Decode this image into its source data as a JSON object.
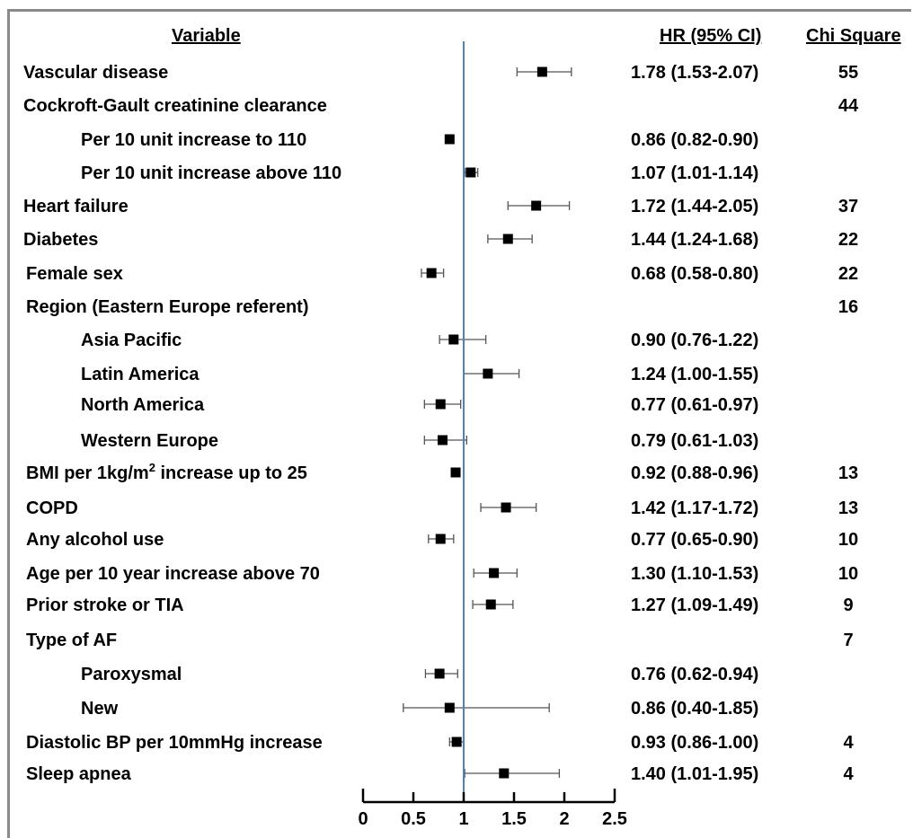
{
  "chart_data": {
    "type": "forest",
    "headers": {
      "variable": "Variable",
      "hr": "HR (95% CI)",
      "chi": "Chi Square"
    },
    "x_ticks": [
      0,
      0.5,
      1,
      1.5,
      2,
      2.5
    ],
    "xlim": [
      0,
      2.5
    ],
    "reference_line": 1,
    "reference_color": "#4f81bd",
    "rows": [
      {
        "label": "Vascular disease",
        "indent": 0,
        "hr": 1.78,
        "lo": 1.53,
        "hi": 2.07,
        "hr_text": "1.78 (1.53-2.07)",
        "chi": "55"
      },
      {
        "label": "Cockroft-Gault creatinine clearance",
        "indent": 0,
        "hr": null,
        "lo": null,
        "hi": null,
        "hr_text": "",
        "chi": "44"
      },
      {
        "label": "Per 10 unit increase to 110",
        "indent": 2,
        "hr": 0.86,
        "lo": 0.82,
        "hi": 0.9,
        "hr_text": "0.86 (0.82-0.90)",
        "chi": ""
      },
      {
        "label": "Per 10 unit increase above 110",
        "indent": 2,
        "hr": 1.07,
        "lo": 1.01,
        "hi": 1.14,
        "hr_text": "1.07 (1.01-1.14)",
        "chi": ""
      },
      {
        "label": "Heart failure",
        "indent": 0,
        "hr": 1.72,
        "lo": 1.44,
        "hi": 2.05,
        "hr_text": "1.72 (1.44-2.05)",
        "chi": "37"
      },
      {
        "label": "Diabetes",
        "indent": 0,
        "hr": 1.44,
        "lo": 1.24,
        "hi": 1.68,
        "hr_text": "1.44 (1.24-1.68)",
        "chi": "22"
      },
      {
        "label": "Female sex",
        "indent": 1,
        "hr": 0.68,
        "lo": 0.58,
        "hi": 0.8,
        "hr_text": "0.68 (0.58-0.80)",
        "chi": "22"
      },
      {
        "label": "Region (Eastern Europe referent)",
        "indent": 1,
        "hr": null,
        "lo": null,
        "hi": null,
        "hr_text": "",
        "chi": "16"
      },
      {
        "label": "Asia Pacific",
        "indent": 2,
        "hr": 0.9,
        "lo": 0.76,
        "hi": 1.22,
        "hr_text": "0.90 (0.76-1.22)",
        "chi": ""
      },
      {
        "label": "Latin America",
        "indent": 2,
        "hr": 1.24,
        "lo": 1.0,
        "hi": 1.55,
        "hr_text": "1.24 (1.00-1.55)",
        "chi": ""
      },
      {
        "label": "North America",
        "indent": 2,
        "hr": 0.77,
        "lo": 0.61,
        "hi": 0.97,
        "hr_text": "0.77 (0.61-0.97)",
        "chi": ""
      },
      {
        "label": "Western Europe",
        "indent": 2,
        "hr": 0.79,
        "lo": 0.61,
        "hi": 1.03,
        "hr_text": "0.79 (0.61-1.03)",
        "chi": ""
      },
      {
        "label": "BMI per 1kg/m",
        "label_sup": "2",
        "label_tail": " increase up to 25",
        "indent": 1,
        "hr": 0.92,
        "lo": 0.88,
        "hi": 0.96,
        "hr_text": "0.92 (0.88-0.96)",
        "chi": "13"
      },
      {
        "label": "COPD",
        "indent": 1,
        "hr": 1.42,
        "lo": 1.17,
        "hi": 1.72,
        "hr_text": "1.42 (1.17-1.72)",
        "chi": "13"
      },
      {
        "label": "Any alcohol use",
        "indent": 1,
        "hr": 0.77,
        "lo": 0.65,
        "hi": 0.9,
        "hr_text": "0.77 (0.65-0.90)",
        "chi": "10"
      },
      {
        "label": "Age per 10 year increase above 70",
        "indent": 1,
        "hr": 1.3,
        "lo": 1.1,
        "hi": 1.53,
        "hr_text": "1.30 (1.10-1.53)",
        "chi": "10"
      },
      {
        "label": "Prior stroke or TIA",
        "indent": 1,
        "hr": 1.27,
        "lo": 1.09,
        "hi": 1.49,
        "hr_text": "1.27 (1.09-1.49)",
        "chi": "9"
      },
      {
        "label": "Type of AF",
        "indent": 1,
        "hr": null,
        "lo": null,
        "hi": null,
        "hr_text": "",
        "chi": "7"
      },
      {
        "label": "Paroxysmal",
        "indent": 2,
        "hr": 0.76,
        "lo": 0.62,
        "hi": 0.94,
        "hr_text": "0.76 (0.62-0.94)",
        "chi": ""
      },
      {
        "label": "New",
        "indent": 2,
        "hr": 0.86,
        "lo": 0.4,
        "hi": 1.85,
        "hr_text": "0.86 (0.40-1.85)",
        "chi": ""
      },
      {
        "label": "Diastolic BP per 10mmHg increase",
        "indent": 1,
        "hr": 0.93,
        "lo": 0.86,
        "hi": 1.0,
        "hr_text": "0.93 (0.86-1.00)",
        "chi": "4"
      },
      {
        "label": "Sleep apnea",
        "indent": 1,
        "hr": 1.4,
        "lo": 1.01,
        "hi": 1.95,
        "hr_text": "1.40 (1.01-1.95)",
        "chi": "4"
      }
    ]
  }
}
